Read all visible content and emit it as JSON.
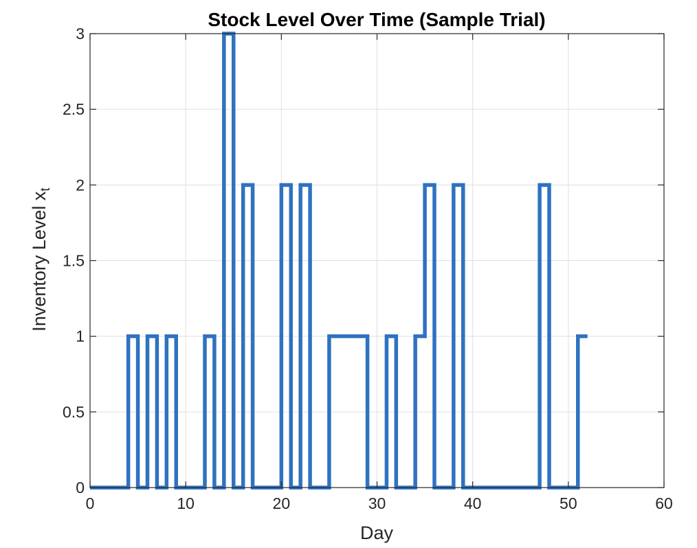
{
  "chart_data": {
    "type": "line",
    "style": "stairs",
    "title": "Stock Level Over Time (Sample Trial)",
    "xlabel": "Day",
    "ylabel": "Inventory Level x",
    "ylabel_subscript": "t",
    "xlim": [
      0,
      60
    ],
    "ylim": [
      0,
      3
    ],
    "xticks": [
      0,
      10,
      20,
      30,
      40,
      50,
      60
    ],
    "yticks": [
      0,
      0.5,
      1,
      1.5,
      2,
      2.5,
      3
    ],
    "xtick_labels": [
      "0",
      "10",
      "20",
      "30",
      "40",
      "50",
      "60"
    ],
    "ytick_labels": [
      "0",
      "0.5",
      "1",
      "1.5",
      "2",
      "2.5",
      "3"
    ],
    "grid": true,
    "series": [
      {
        "color": "#2f72c0",
        "x": [
          0,
          1,
          2,
          3,
          4,
          5,
          6,
          7,
          8,
          9,
          10,
          11,
          12,
          13,
          14,
          15,
          16,
          17,
          18,
          19,
          20,
          21,
          22,
          23,
          24,
          25,
          26,
          27,
          28,
          29,
          30,
          31,
          32,
          33,
          34,
          35,
          36,
          37,
          38,
          39,
          40,
          41,
          42,
          43,
          44,
          45,
          46,
          47,
          48,
          49,
          50,
          51,
          52
        ],
        "values": [
          0,
          0,
          0,
          0,
          1,
          0,
          1,
          0,
          1,
          0,
          0,
          0,
          1,
          0,
          3,
          0,
          2,
          0,
          0,
          0,
          2,
          0,
          2,
          0,
          0,
          1,
          1,
          1,
          1,
          0,
          0,
          1,
          0,
          0,
          1,
          2,
          0,
          0,
          2,
          0,
          0,
          0,
          0,
          0,
          0,
          0,
          0,
          2,
          0,
          0,
          0,
          1,
          1
        ]
      }
    ]
  }
}
